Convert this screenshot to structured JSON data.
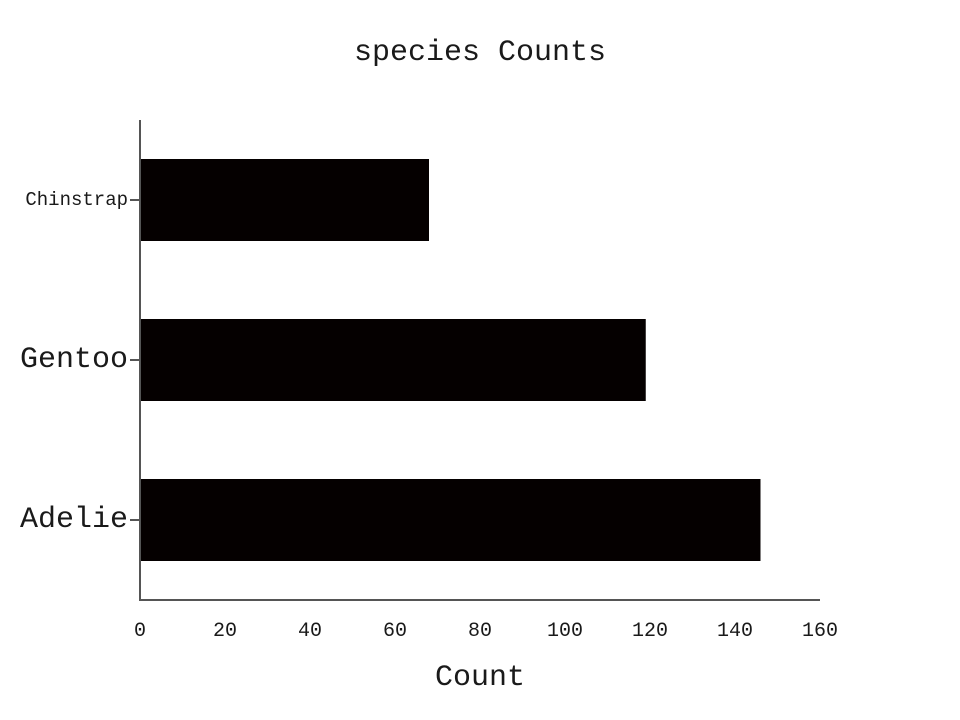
{
  "chart_data": {
    "type": "bar",
    "orientation": "horizontal",
    "title": "species Counts",
    "xlabel": "Count",
    "ylabel": "",
    "categories": [
      "Adelie",
      "Gentoo",
      "Chinstrap"
    ],
    "values": [
      146,
      119,
      68
    ],
    "xlim": [
      0,
      160
    ],
    "xticks": [
      "0",
      "20",
      "40",
      "60",
      "80",
      "100",
      "120",
      "140",
      "160"
    ],
    "grid": false,
    "legend": "none",
    "bar_color": "#050000",
    "axis_color": "#555555"
  }
}
